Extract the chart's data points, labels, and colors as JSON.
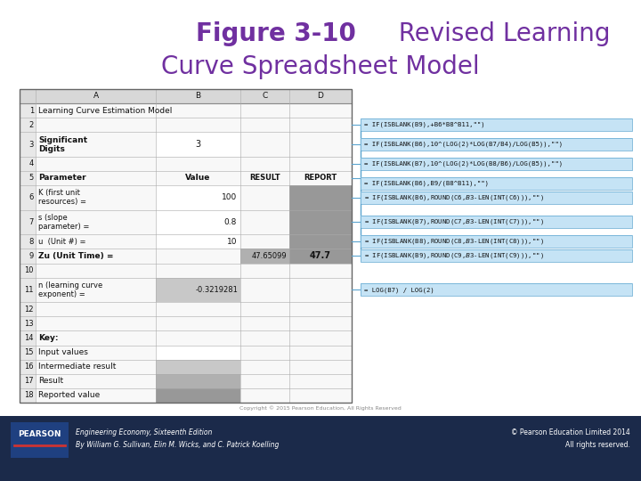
{
  "title_bold": "Figure 3-10",
  "title_regular": "  Revised Learning\nCurve Spreadsheet Model",
  "title_color": "#7030A0",
  "title_fontsize": 20,
  "bg_color": "#FFFFFF",
  "formula_texts": [
    "= IF(ISBLANK(B9),+B6*B8^B11,\"\")",
    "= IF(ISBLANK(B6),10^(LOG(2)*LOG(B7/B4)/LOG(B5)),\"\")",
    "= IF(ISBLANK(B7),10^(LOG(2)*LOG(B8/B6)/LOG(B5)),\"\")",
    "= IF(ISBLANK(B6),B9/(B8^B11),\"\")",
    "= IF(ISBLANK(B6),ROUND(C6,$B$3-LEN(INT(C6))),\"\")",
    "= IF(ISBLANK(B7),ROUND(C7,$B$3-LEN(INT(C7))),\"\")",
    "= IF(ISBLANK(B8),ROUND(C8,$B$3-LEN(INT(C8))),\"\")",
    "= IF(ISBLANK(B9),ROUND(C9,$B$3-LEN(INT(C9))),\"\")",
    "= LOG(B7) / LOG(2)"
  ],
  "footer_bar_color": "#1F3864",
  "footer_text1": "Engineering Economy, Sixteenth Edition",
  "footer_text2": "By William G. Sullivan, Elin M. Wicks, and C. Patrick Koelling",
  "footer_right1": "© Pearson Education Limited 2014",
  "footer_right2": "All rights reserved.",
  "copyright_text": "Copyright © 2015 Pearson Education, All Rights Reserved"
}
